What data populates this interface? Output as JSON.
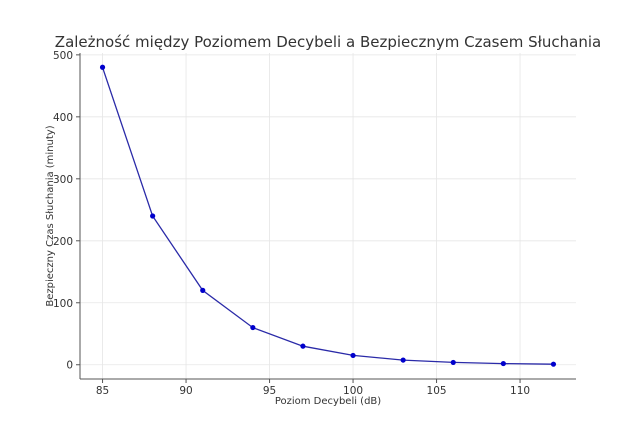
{
  "chart_data": {
    "type": "line",
    "title": "Zależność między Poziomem Decybeli a Bezpiecznym Czasem Słuchania",
    "xlabel": "Poziom Decybeli (dB)",
    "ylabel": "Bezpieczny Czas Słuchania (minuty)",
    "x": [
      85,
      88,
      91,
      94,
      97,
      100,
      103,
      106,
      109,
      112
    ],
    "series": [
      {
        "name": "Bezpieczny Czas Słuchania",
        "values": [
          480,
          240,
          120,
          60,
          30,
          15,
          7.5,
          3.75,
          1.875,
          0.9375
        ],
        "color": "#0000cc",
        "marker": "circle"
      }
    ],
    "xticks": [
      85,
      90,
      95,
      100,
      105,
      110
    ],
    "yticks": [
      0,
      100,
      200,
      300,
      400,
      500
    ],
    "xlim": [
      83.65,
      113.35
    ],
    "ylim": [
      -23,
      503
    ],
    "grid": true,
    "legend": "none"
  }
}
